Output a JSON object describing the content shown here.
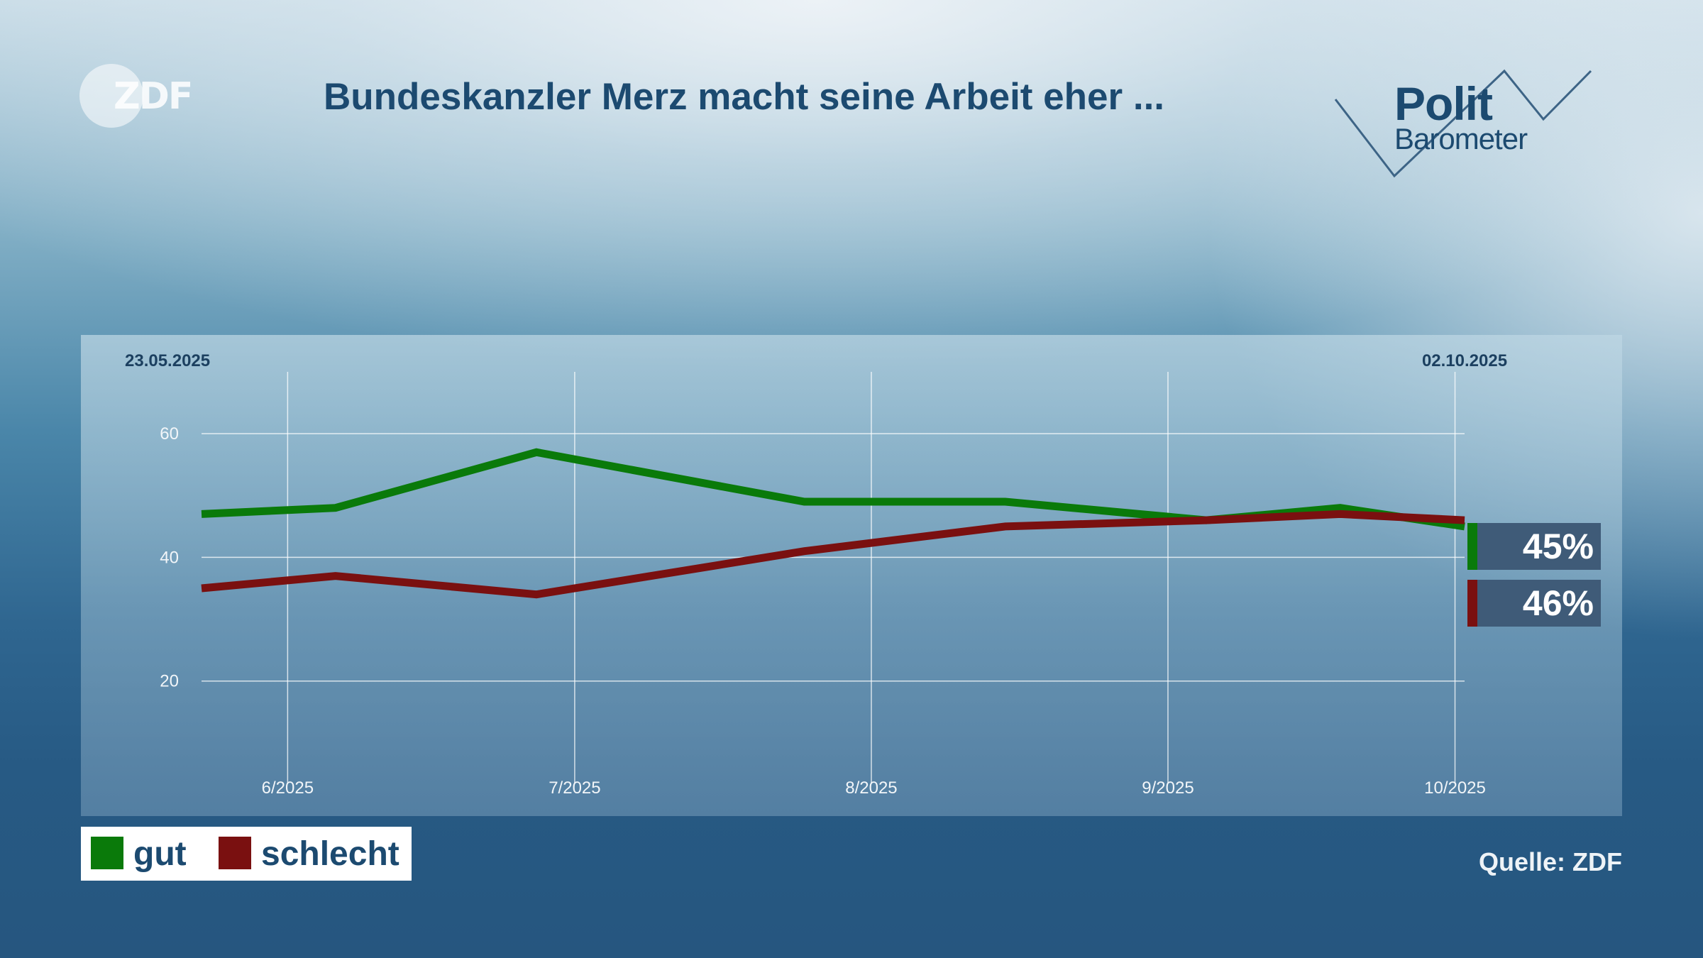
{
  "header": {
    "logo_text": "ZDF",
    "title": "Bundeskanzler Merz macht seine Arbeit eher ...",
    "brand_line1": "Polit",
    "brand_line2": "Barometer"
  },
  "colors": {
    "gut": "#0a7a0a",
    "schlecht": "#7a1010"
  },
  "chart_data": {
    "type": "line",
    "title": "Bundeskanzler Merz macht seine Arbeit eher ...",
    "date_start": "23.05.2025",
    "date_end": "02.10.2025",
    "x_domain": [
      "2025-05-23",
      "2025-10-02"
    ],
    "x_ticks": [
      {
        "date": "2025-06-01",
        "label": "6/2025"
      },
      {
        "date": "2025-07-01",
        "label": "7/2025"
      },
      {
        "date": "2025-08-01",
        "label": "8/2025"
      },
      {
        "date": "2025-09-01",
        "label": "9/2025"
      },
      {
        "date": "2025-10-01",
        "label": "10/2025"
      }
    ],
    "y_ticks": [
      20,
      40,
      60
    ],
    "ylim": [
      0,
      70
    ],
    "grid": true,
    "series": [
      {
        "name": "gut",
        "color": "#0a7a0a",
        "points": [
          {
            "x": "2025-05-23",
            "y": 47
          },
          {
            "x": "2025-06-06",
            "y": 48
          },
          {
            "x": "2025-06-27",
            "y": 57
          },
          {
            "x": "2025-07-25",
            "y": 49
          },
          {
            "x": "2025-08-15",
            "y": 49
          },
          {
            "x": "2025-09-05",
            "y": 46
          },
          {
            "x": "2025-09-19",
            "y": 48
          },
          {
            "x": "2025-10-02",
            "y": 45
          }
        ],
        "final_label": "45%"
      },
      {
        "name": "schlecht",
        "color": "#7a1010",
        "points": [
          {
            "x": "2025-05-23",
            "y": 35
          },
          {
            "x": "2025-06-06",
            "y": 37
          },
          {
            "x": "2025-06-27",
            "y": 34
          },
          {
            "x": "2025-07-25",
            "y": 41
          },
          {
            "x": "2025-08-15",
            "y": 45
          },
          {
            "x": "2025-09-05",
            "y": 46
          },
          {
            "x": "2025-09-19",
            "y": 47
          },
          {
            "x": "2025-10-02",
            "y": 46
          }
        ],
        "final_label": "46%"
      }
    ],
    "legend": [
      {
        "name": "gut",
        "color": "#0a7a0a"
      },
      {
        "name": "schlecht",
        "color": "#7a1010"
      }
    ],
    "legend_position": "bottom-left"
  },
  "footer": {
    "source": "Quelle: ZDF"
  }
}
